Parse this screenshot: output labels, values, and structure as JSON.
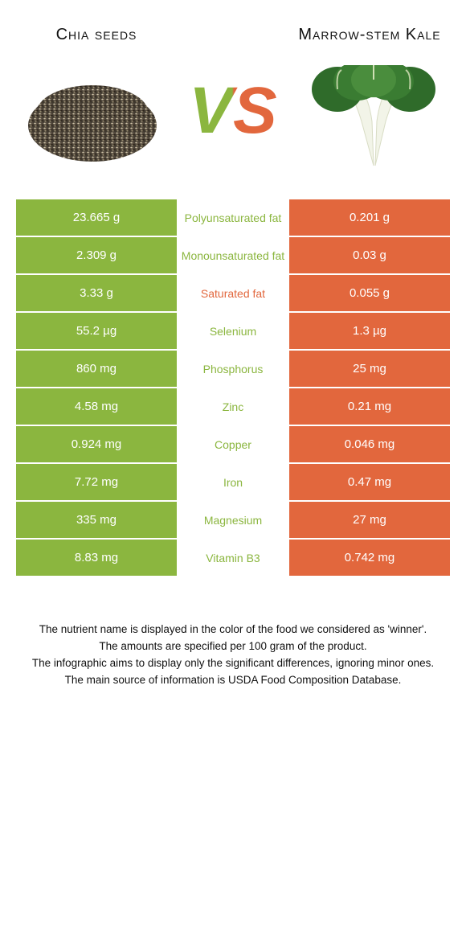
{
  "colors": {
    "left": "#8bb63f",
    "right": "#e2673d"
  },
  "header": {
    "left_name": "Chia seeds",
    "right_name": "Marrow-stem Kale",
    "vs": "VS"
  },
  "rows": [
    {
      "nutrient": "Polyunsaturated fat",
      "winner": "left",
      "left": "23.665 g",
      "right": "0.201 g"
    },
    {
      "nutrient": "Monounsaturated fat",
      "winner": "left",
      "left": "2.309 g",
      "right": "0.03 g"
    },
    {
      "nutrient": "Saturated fat",
      "winner": "right",
      "left": "3.33 g",
      "right": "0.055 g"
    },
    {
      "nutrient": "Selenium",
      "winner": "left",
      "left": "55.2 µg",
      "right": "1.3 µg"
    },
    {
      "nutrient": "Phosphorus",
      "winner": "left",
      "left": "860 mg",
      "right": "25 mg"
    },
    {
      "nutrient": "Zinc",
      "winner": "left",
      "left": "4.58 mg",
      "right": "0.21 mg"
    },
    {
      "nutrient": "Copper",
      "winner": "left",
      "left": "0.924 mg",
      "right": "0.046 mg"
    },
    {
      "nutrient": "Iron",
      "winner": "left",
      "left": "7.72 mg",
      "right": "0.47 mg"
    },
    {
      "nutrient": "Magnesium",
      "winner": "left",
      "left": "335 mg",
      "right": "27 mg"
    },
    {
      "nutrient": "Vitamin B3",
      "winner": "left",
      "left": "8.83 mg",
      "right": "0.742 mg"
    }
  ],
  "footnotes": [
    "The nutrient name is displayed in the color of the food we considered as 'winner'.",
    "The amounts are specified per 100 gram of the product.",
    "The infographic aims to display only the significant differences, ignoring minor ones.",
    "The main source of information is USDA Food Composition Database."
  ]
}
